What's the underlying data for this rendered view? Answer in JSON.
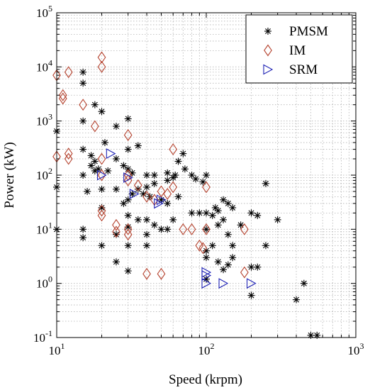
{
  "chart_data": {
    "type": "scatter",
    "title": "",
    "xlabel": "Speed (krpm)",
    "ylabel": "Power (kW)",
    "xscale": "log",
    "yscale": "log",
    "xlim": [
      10,
      1000
    ],
    "ylim": [
      0.1,
      100000
    ],
    "grid": true,
    "legend_position": "top-right",
    "x_ticks": [
      {
        "base": "10",
        "exp": "1"
      },
      {
        "base": "10",
        "exp": "2"
      },
      {
        "base": "10",
        "exp": "3"
      }
    ],
    "y_ticks": [
      {
        "base": "10",
        "exp": "-1"
      },
      {
        "base": "10",
        "exp": "0"
      },
      {
        "base": "10",
        "exp": "1"
      },
      {
        "base": "10",
        "exp": "2"
      },
      {
        "base": "10",
        "exp": "3"
      },
      {
        "base": "10",
        "exp": "4"
      },
      {
        "base": "10",
        "exp": "5"
      }
    ],
    "series": [
      {
        "name": "PMSM",
        "marker": "asterisk",
        "color": "#000000",
        "points": [
          [
            10,
            650
          ],
          [
            10,
            60
          ],
          [
            10,
            10
          ],
          [
            15,
            8000
          ],
          [
            15,
            5000
          ],
          [
            18,
            2000
          ],
          [
            15,
            1000
          ],
          [
            20,
            1500
          ],
          [
            25,
            800
          ],
          [
            30,
            1100
          ],
          [
            15,
            300
          ],
          [
            17,
            230
          ],
          [
            18,
            180
          ],
          [
            17,
            150
          ],
          [
            18,
            120
          ],
          [
            15,
            100
          ],
          [
            19,
            130
          ],
          [
            22,
            120
          ],
          [
            16,
            50
          ],
          [
            20,
            55
          ],
          [
            25,
            55
          ],
          [
            21,
            400
          ],
          [
            30,
            300
          ],
          [
            25,
            200
          ],
          [
            35,
            350
          ],
          [
            28,
            150
          ],
          [
            30,
            130
          ],
          [
            32,
            110
          ],
          [
            40,
            100
          ],
          [
            45,
            100
          ],
          [
            55,
            110
          ],
          [
            65,
            180
          ],
          [
            62,
            100
          ],
          [
            70,
            250
          ],
          [
            72,
            130
          ],
          [
            80,
            100
          ],
          [
            100,
            100
          ],
          [
            85,
            85
          ],
          [
            95,
            75
          ],
          [
            60,
            90
          ],
          [
            55,
            80
          ],
          [
            45,
            70
          ],
          [
            40,
            60
          ],
          [
            35,
            55
          ],
          [
            32,
            45
          ],
          [
            30,
            35
          ],
          [
            28,
            30
          ],
          [
            38,
            45
          ],
          [
            42,
            40
          ],
          [
            50,
            35
          ],
          [
            55,
            30
          ],
          [
            65,
            40
          ],
          [
            80,
            20
          ],
          [
            90,
            20
          ],
          [
            100,
            20
          ],
          [
            110,
            18
          ],
          [
            115,
            25
          ],
          [
            120,
            22
          ],
          [
            130,
            35
          ],
          [
            140,
            30
          ],
          [
            150,
            25
          ],
          [
            120,
            12
          ],
          [
            130,
            15
          ],
          [
            170,
            12
          ],
          [
            200,
            20
          ],
          [
            220,
            18
          ],
          [
            250,
            70
          ],
          [
            300,
            15
          ],
          [
            15,
            10
          ],
          [
            15,
            7
          ],
          [
            20,
            5
          ],
          [
            25,
            8
          ],
          [
            30,
            5
          ],
          [
            30,
            18
          ],
          [
            30,
            11
          ],
          [
            40,
            15
          ],
          [
            40,
            8
          ],
          [
            50,
            10
          ],
          [
            55,
            10
          ],
          [
            60,
            15
          ],
          [
            100,
            10
          ],
          [
            110,
            5
          ],
          [
            140,
            8
          ],
          [
            150,
            5
          ],
          [
            150,
            3
          ],
          [
            100,
            4
          ],
          [
            100,
            3
          ],
          [
            120,
            2.5
          ],
          [
            130,
            1.8
          ],
          [
            140,
            2.2
          ],
          [
            200,
            2
          ],
          [
            220,
            2
          ],
          [
            250,
            5
          ],
          [
            25,
            2.5
          ],
          [
            30,
            1.7
          ],
          [
            40,
            5
          ],
          [
            200,
            0.6
          ],
          [
            400,
            0.5
          ],
          [
            450,
            1
          ],
          [
            500,
            0.11
          ],
          [
            550,
            0.11
          ],
          [
            20,
            25
          ],
          [
            35,
            15
          ],
          [
            45,
            12
          ],
          [
            100,
            1.2
          ]
        ]
      },
      {
        "name": "IM",
        "marker": "diamond",
        "color": "#B5432F",
        "points": [
          [
            10,
            7000
          ],
          [
            11,
            3000
          ],
          [
            11,
            2600
          ],
          [
            12,
            8000
          ],
          [
            15,
            2000
          ],
          [
            20,
            15000
          ],
          [
            20,
            10000
          ],
          [
            18,
            800
          ],
          [
            30,
            550
          ],
          [
            10,
            220
          ],
          [
            12,
            250
          ],
          [
            12,
            200
          ],
          [
            20,
            200
          ],
          [
            20,
            100
          ],
          [
            30,
            100
          ],
          [
            30,
            80
          ],
          [
            35,
            65
          ],
          [
            40,
            40
          ],
          [
            45,
            35
          ],
          [
            50,
            50
          ],
          [
            60,
            300
          ],
          [
            60,
            60
          ],
          [
            55,
            45
          ],
          [
            20,
            22
          ],
          [
            20,
            18
          ],
          [
            25,
            12
          ],
          [
            25,
            9
          ],
          [
            30,
            10
          ],
          [
            30,
            8
          ],
          [
            70,
            10
          ],
          [
            80,
            10
          ],
          [
            90,
            5
          ],
          [
            95,
            4.5
          ],
          [
            100,
            10
          ],
          [
            100,
            60
          ],
          [
            180,
            10
          ],
          [
            180,
            1.6
          ],
          [
            40,
            1.5
          ],
          [
            50,
            1.5
          ]
        ]
      },
      {
        "name": "SRM",
        "marker": "triangle-right",
        "color": "#1E22B5",
        "points": [
          [
            23,
            250
          ],
          [
            20,
            100
          ],
          [
            30,
            90
          ],
          [
            33,
            45
          ],
          [
            50,
            35
          ],
          [
            48,
            30
          ],
          [
            100,
            1.6
          ],
          [
            100,
            1.4
          ],
          [
            100,
            1.0
          ],
          [
            130,
            1.0
          ],
          [
            200,
            1.0
          ]
        ]
      }
    ]
  }
}
